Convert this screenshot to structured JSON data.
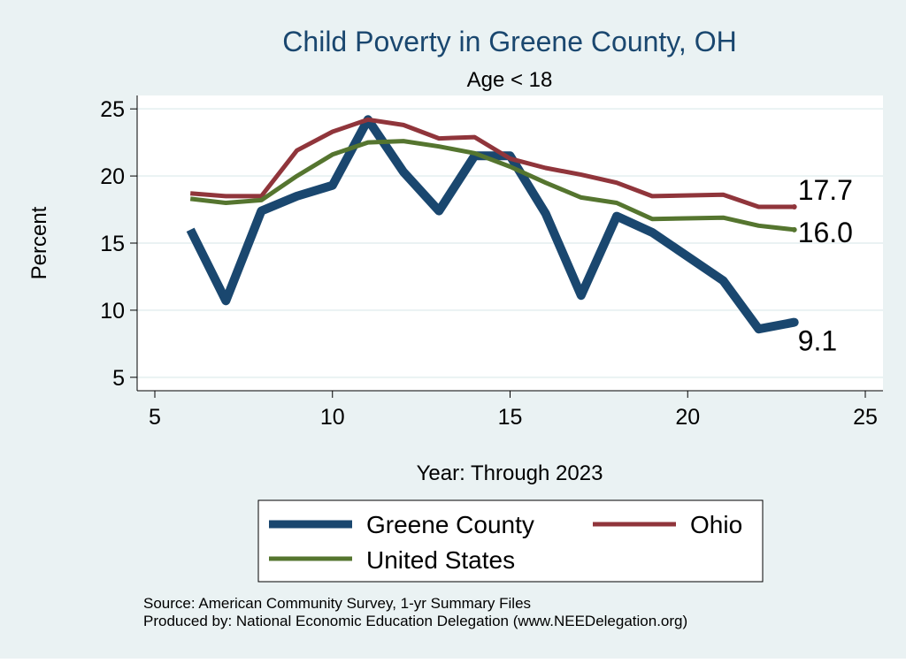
{
  "chart_data": {
    "type": "line",
    "title": "Child Poverty in Greene County, OH",
    "subtitle": "Age < 18",
    "xlabel": "Year: Through 2023",
    "ylabel": "Percent",
    "xlim": [
      5,
      25
    ],
    "ylim": [
      4,
      26
    ],
    "xticks": [
      5,
      10,
      15,
      20,
      25
    ],
    "yticks": [
      5,
      10,
      15,
      20,
      25
    ],
    "grid": true,
    "legend_position": "bottom",
    "series": [
      {
        "name": "Greene County",
        "color": "#1a476f",
        "x": [
          6,
          7,
          8,
          9,
          10,
          11,
          12,
          13,
          14,
          15,
          16,
          17,
          18,
          19,
          21,
          22,
          23
        ],
        "y": [
          16.0,
          10.7,
          17.4,
          18.5,
          19.3,
          24.2,
          20.3,
          17.4,
          21.5,
          21.5,
          17.2,
          11.1,
          17.0,
          15.8,
          12.2,
          8.6,
          9.1
        ],
        "end_label": "9.1"
      },
      {
        "name": "Ohio",
        "color": "#90353b",
        "x": [
          6,
          7,
          8,
          9,
          10,
          11,
          12,
          13,
          14,
          15,
          16,
          17,
          18,
          19,
          21,
          22,
          23
        ],
        "y": [
          18.7,
          18.5,
          18.5,
          21.9,
          23.3,
          24.2,
          23.8,
          22.8,
          22.9,
          21.3,
          20.6,
          20.1,
          19.5,
          18.5,
          18.6,
          17.7,
          17.7
        ],
        "end_label": "17.7"
      },
      {
        "name": "United States",
        "color": "#55752f",
        "x": [
          6,
          7,
          8,
          9,
          10,
          11,
          12,
          13,
          14,
          15,
          16,
          17,
          18,
          19,
          21,
          22,
          23
        ],
        "y": [
          18.3,
          18.0,
          18.2,
          20.0,
          21.6,
          22.5,
          22.6,
          22.2,
          21.7,
          20.7,
          19.5,
          18.4,
          18.0,
          16.8,
          16.9,
          16.3,
          16.0
        ],
        "end_label": "16.0"
      }
    ],
    "notes": [
      "Source: American Community Survey, 1-yr Summary Files",
      "Produced by: National Economic Education Delegation (www.NEEDelegation.org)"
    ]
  }
}
